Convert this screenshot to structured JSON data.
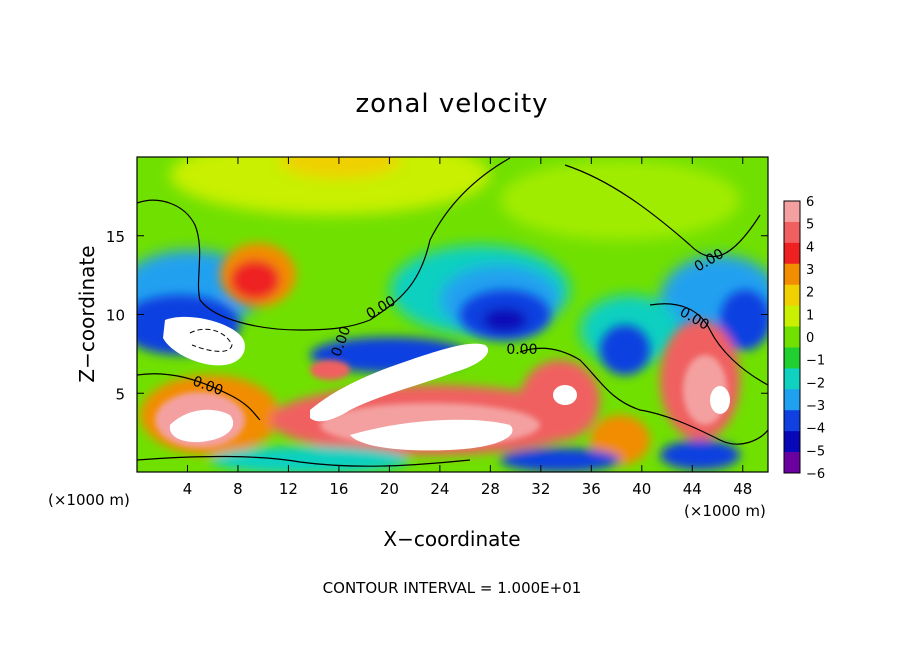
{
  "chart_data": {
    "type": "heatmap",
    "title": "zonal velocity",
    "xlabel": "X−coordinate",
    "ylabel": "Z−coordinate",
    "x_unit_note_left": "(×1000 m)",
    "x_unit_note_right": "(×1000 m)",
    "footer": "CONTOUR INTERVAL = 1.000E+01",
    "xlim": [
      0,
      50
    ],
    "ylim": [
      0,
      20
    ],
    "x_ticks": [
      4,
      8,
      12,
      16,
      20,
      24,
      28,
      32,
      36,
      40,
      44,
      48
    ],
    "y_ticks": [
      5,
      10,
      15
    ],
    "colorbar": {
      "labels": [
        "6",
        "5",
        "4",
        "3",
        "2",
        "1",
        "0",
        "−1",
        "−2",
        "−3",
        "−4",
        "−5",
        "−6"
      ],
      "colors": [
        "#f4a0a0",
        "#f06060",
        "#ee2020",
        "#f28c00",
        "#f0d000",
        "#c8f000",
        "#70e000",
        "#20d030",
        "#10d0c0",
        "#20a0f0",
        "#1040e0",
        "#0808b8",
        "#6a00a0"
      ]
    },
    "contour_labels": [
      "0.00",
      "0.00",
      "0.00",
      "0.00",
      "0.00",
      "0.00"
    ],
    "grid": false,
    "legend": "colorbar-right"
  }
}
